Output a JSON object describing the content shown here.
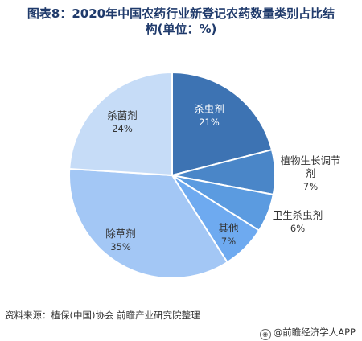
{
  "chart_data": {
    "type": "pie",
    "title": "图表8：2020年中国农药行业新登记农药数量类别占比结构(单位：%)",
    "title_line1": "图表8：2020年中国农药行业新登记农药数量类别占比结",
    "title_line2": "构(单位：%)",
    "slices": [
      {
        "name": "杀虫剂",
        "value": 21,
        "label": "21%",
        "color": "#3d73b3"
      },
      {
        "name": "植物生长调节剂",
        "name_line1": "植物生长调节",
        "name_line2": "剂",
        "value": 7,
        "label": "7%",
        "color": "#4a86c8"
      },
      {
        "name": "卫生杀虫剂",
        "value": 6,
        "label": "6%",
        "color": "#5b9be0"
      },
      {
        "name": "其他",
        "value": 7,
        "label": "7%",
        "color": "#6eaaf0"
      },
      {
        "name": "除草剂",
        "value": 35,
        "label": "35%",
        "color": "#a3c7f5"
      },
      {
        "name": "杀菌剂",
        "value": 24,
        "label": "24%",
        "color": "#c6dcf7"
      }
    ]
  },
  "footer": {
    "source": "资料来源：植保(中国)协会 前瞻产业研究院整理",
    "brand": "@前瞻经济学人APP"
  }
}
